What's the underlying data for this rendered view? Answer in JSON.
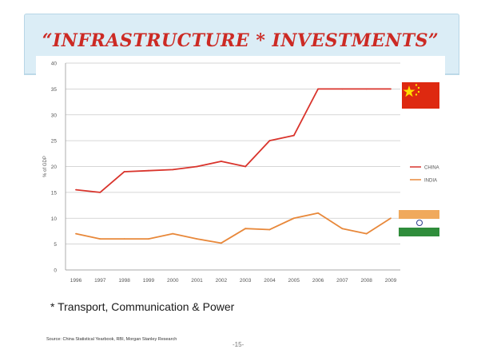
{
  "slide": {
    "title": "“INFRASTRUCTURE * INVESTMENTS”",
    "footnote": "* Transport, Communication & Power",
    "source": "Source: China Statistical Yearbook, RBI, Morgan Stanley Research",
    "page_number": "-15-"
  },
  "colors": {
    "china_line": "#d9342c",
    "india_line": "#e8883a",
    "title_band": "#dbedf6",
    "title_text": "#cc2a24"
  },
  "icons": {
    "china_flag": "china-flag-icon",
    "india_flag": "india-flag-icon"
  },
  "chart_data": {
    "type": "line",
    "title": "",
    "xlabel": "",
    "ylabel": "% of GDP",
    "categories": [
      "1996",
      "1997",
      "1998",
      "1999",
      "2000",
      "2001",
      "2002",
      "2003",
      "2004",
      "2005",
      "2006",
      "2007",
      "2008",
      "2009"
    ],
    "ylim": [
      0,
      40
    ],
    "yticks": [
      "0",
      "5",
      "10",
      "15",
      "20",
      "25",
      "30",
      "35",
      "40"
    ],
    "grid": true,
    "legend_position": "right",
    "series": [
      {
        "name": "CHINA",
        "color": "#d9342c",
        "values": [
          15.5,
          15,
          19,
          19.2,
          19.4,
          20,
          21,
          20,
          25,
          26,
          35,
          35,
          35,
          35
        ]
      },
      {
        "name": "INDIA",
        "color": "#e8883a",
        "values": [
          7,
          6,
          6,
          6,
          7,
          6,
          5.2,
          8,
          7.8,
          10,
          11,
          8,
          7,
          10
        ]
      }
    ]
  }
}
